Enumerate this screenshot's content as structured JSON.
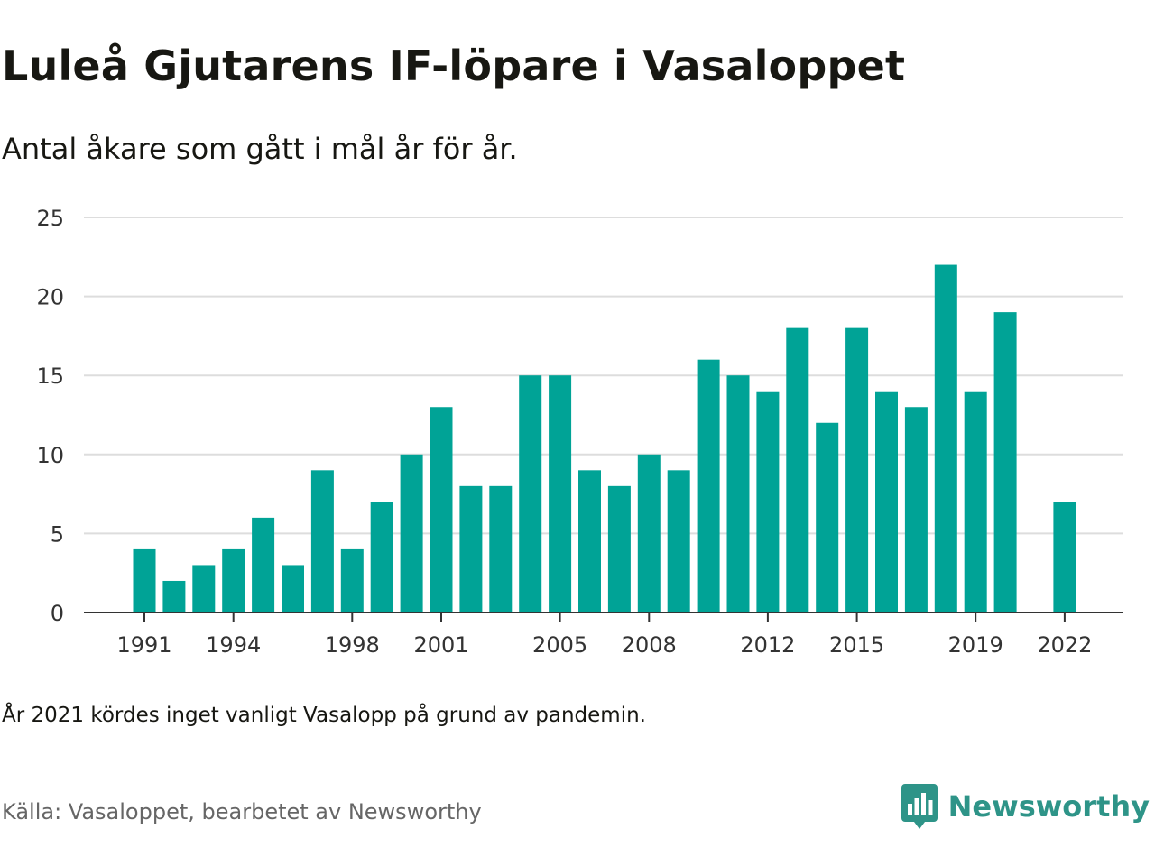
{
  "title": "Luleå Gjutarens IF-löpare i Vasaloppet",
  "subtitle": "Antal åkare som gått i mål år för år.",
  "note": "År 2021 kördes inget vanligt Vasalopp på grund av pandemin.",
  "source": "Källa: Vasaloppet, bearbetet av Newsworthy",
  "brand": {
    "name": "Newsworthy",
    "icon": "newsworthy-logo-icon",
    "color": "#2e9488"
  },
  "colors": {
    "bar": "#00a396",
    "grid": "#dddddd",
    "axis": "#333333"
  },
  "chart_data": {
    "type": "bar",
    "x": [
      1991,
      1992,
      1993,
      1994,
      1995,
      1996,
      1997,
      1998,
      1999,
      2000,
      2001,
      2002,
      2003,
      2004,
      2005,
      2006,
      2007,
      2008,
      2009,
      2010,
      2011,
      2012,
      2013,
      2014,
      2015,
      2016,
      2017,
      2018,
      2019,
      2020,
      2021,
      2022
    ],
    "values": [
      4,
      2,
      3,
      4,
      6,
      3,
      9,
      4,
      7,
      10,
      13,
      8,
      8,
      15,
      15,
      9,
      8,
      10,
      9,
      16,
      15,
      14,
      18,
      12,
      18,
      14,
      13,
      22,
      14,
      19,
      null,
      7
    ],
    "x_tick_labels": [
      "1991",
      "1994",
      "1998",
      "2001",
      "2005",
      "2008",
      "2012",
      "2015",
      "2019",
      "2022"
    ],
    "y_ticks": [
      0,
      5,
      10,
      15,
      20,
      25
    ],
    "ylim": [
      0,
      25
    ],
    "xlabel": "",
    "ylabel": "",
    "grid": true,
    "legend": "none"
  }
}
